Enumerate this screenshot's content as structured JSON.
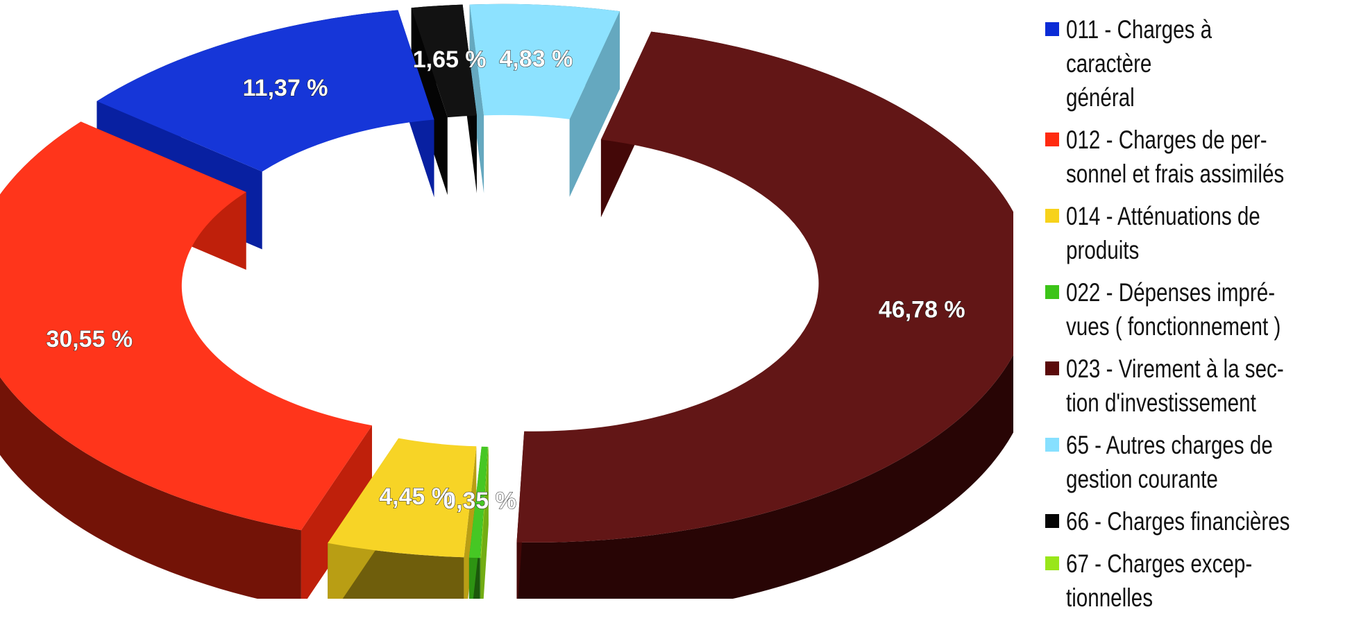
{
  "chart_data": {
    "type": "pie",
    "style": "3d-donut-exploded",
    "title": "",
    "slices": [
      {
        "category": "67 - Charges exceptionnelles",
        "legend_lines": [
          "67 - Charges excep-",
          "tionnelles"
        ],
        "color": "#99e61a",
        "value": 0.02,
        "label": ""
      },
      {
        "category": "022 - Dépenses imprévues ( fonctionnement )",
        "legend_lines": [
          "022 - Dépenses impré-",
          "vues ( fonctionnement )"
        ],
        "color": "#3cc418",
        "value": 0.35,
        "label": "0,35 %"
      },
      {
        "category": "014 - Atténuations de produits",
        "legend_lines": [
          "014 - Atténuations de",
          "produits"
        ],
        "color": "#f7d21b",
        "value": 4.45,
        "label": "4,45 %"
      },
      {
        "category": "012 - Charges de personnel et frais assimilés",
        "legend_lines": [
          "012 - Charges de per-",
          "sonnel et frais assimilés"
        ],
        "color": "#ff2a0f",
        "value": 30.55,
        "label": "30,55 %"
      },
      {
        "category": "011 - Charges à caractère général",
        "legend_lines": [
          "011 - Charges à caractère",
          "général"
        ],
        "color": "#0a2bd6",
        "value": 11.37,
        "label": "11,37 %"
      },
      {
        "category": "66 - Charges financières",
        "legend_lines": [
          "66 - Charges financières"
        ],
        "color": "#050505",
        "value": 1.65,
        "label": "1,65 %"
      },
      {
        "category": "65 - Autres charges de gestion courante",
        "legend_lines": [
          "65 - Autres charges de",
          "gestion courante"
        ],
        "color": "#87e0ff",
        "value": 4.83,
        "label": "4,83 %"
      },
      {
        "category": "023 - Virement à la section d'investissement",
        "legend_lines": [
          "023 - Virement à la sec-",
          "tion d'investissement"
        ],
        "color": "#5a0a0a",
        "value": 46.78,
        "label": "46,78 %"
      }
    ],
    "legend": {
      "position": "right",
      "items": [
        {
          "lines": [
            "011 - Charges à caractère",
            "général"
          ],
          "color": "#0a2bd6"
        },
        {
          "lines": [
            "012 - Charges de per-",
            "sonnel et frais assimilés"
          ],
          "color": "#ff2a0f"
        },
        {
          "lines": [
            "014 - Atténuations de",
            "produits"
          ],
          "color": "#f7d21b"
        },
        {
          "lines": [
            "022 - Dépenses impré-",
            "vues ( fonctionnement )"
          ],
          "color": "#3cc418"
        },
        {
          "lines": [
            "023 - Virement à la sec-",
            "tion d'investissement"
          ],
          "color": "#5a0a0a"
        },
        {
          "lines": [
            "65 - Autres charges de",
            "gestion courante"
          ],
          "color": "#87e0ff"
        },
        {
          "lines": [
            "66 - Charges financières"
          ],
          "color": "#050505"
        },
        {
          "lines": [
            "67 - Charges excep-",
            "tionnelles"
          ],
          "color": "#99e61a"
        }
      ]
    }
  }
}
